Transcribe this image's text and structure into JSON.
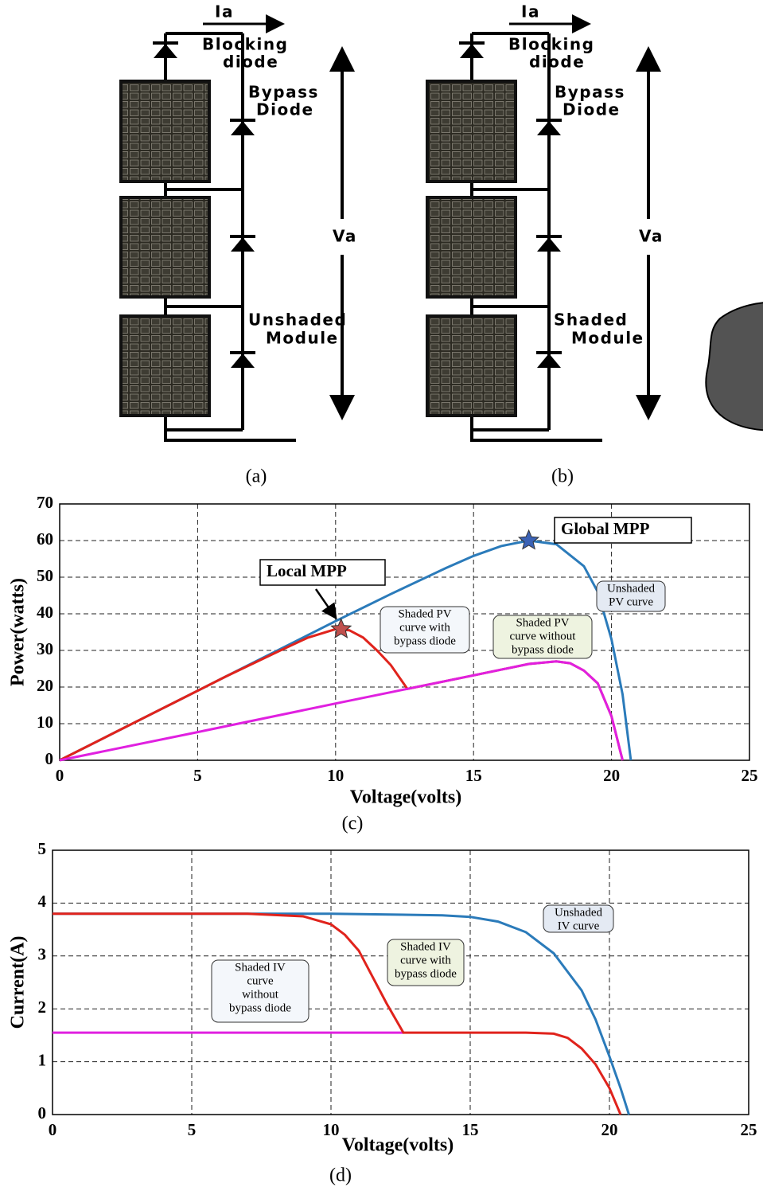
{
  "diagram": {
    "panels": [
      {
        "current": "Ia",
        "blocking": [
          "Blocking",
          "diode"
        ],
        "bypass": [
          "Bypass",
          "Diode"
        ],
        "voltage": "Va",
        "module": [
          "Unshaded",
          "Module"
        ],
        "caption": "(a)"
      },
      {
        "current": "Ia",
        "blocking": [
          "Blocking",
          "diode"
        ],
        "bypass": [
          "Bypass",
          "Diode"
        ],
        "voltage": "Va",
        "module": [
          "Shaded",
          "Module"
        ],
        "caption": "(b)"
      }
    ]
  },
  "chart_data": [
    {
      "type": "line",
      "caption": "(c)",
      "x_label": "Voltage(volts)",
      "y_label": "Power(watts)",
      "xlim": [
        0,
        25
      ],
      "ylim": [
        0,
        70
      ],
      "xticks": [
        0,
        5,
        10,
        15,
        20,
        25
      ],
      "yticks": [
        0,
        10,
        20,
        30,
        40,
        50,
        60,
        70
      ],
      "grid": true,
      "series": [
        {
          "label": [
            "Unshaded",
            "PV curve"
          ],
          "color": "#2b7bba",
          "x": [
            0,
            2,
            4,
            6,
            8,
            10,
            12,
            14,
            15,
            16,
            17,
            18,
            19,
            19.5,
            20,
            20.4,
            20.7
          ],
          "values": [
            0,
            7.6,
            15.2,
            22.8,
            30.4,
            38,
            45.4,
            52.5,
            55.8,
            58.5,
            60,
            59,
            53,
            46,
            33,
            18,
            0
          ]
        },
        {
          "label": [
            "Shaded PV",
            "curve with",
            "bypass diode"
          ],
          "color": "#e0231c",
          "x": [
            0,
            2,
            4,
            6,
            8,
            9,
            10,
            10.5,
            11,
            11.5,
            12,
            12.6,
            15,
            17,
            18,
            18.5,
            19,
            19.5,
            20,
            20.4
          ],
          "values": [
            0,
            7.6,
            15.2,
            22.8,
            30,
            33.5,
            35.8,
            35.5,
            33.5,
            30,
            26,
            19.5,
            23.2,
            26.3,
            27,
            26.5,
            24.5,
            21,
            12,
            0
          ]
        },
        {
          "label": [
            "Shaded PV",
            "curve without",
            "bypass diode"
          ],
          "color": "#e020e0",
          "x": [
            0,
            5,
            10,
            15,
            17,
            18,
            18.5,
            19,
            19.5,
            20,
            20.4
          ],
          "values": [
            0,
            7.7,
            15.5,
            23.2,
            26.3,
            27,
            26.5,
            24.5,
            21,
            12,
            0
          ]
        }
      ],
      "markers": [
        {
          "label": "Global MPP",
          "x": 17,
          "y": 60,
          "color": "#3b62b5"
        },
        {
          "label": "Local MPP",
          "x": 10.2,
          "y": 35.8,
          "color": "#c0504d"
        }
      ]
    },
    {
      "type": "line",
      "caption": "(d)",
      "x_label": "Voltage(volts)",
      "y_label": "Current(A)",
      "xlim": [
        0,
        25
      ],
      "ylim": [
        0,
        5
      ],
      "xticks": [
        0,
        5,
        10,
        15,
        20,
        25
      ],
      "yticks": [
        0,
        1,
        2,
        3,
        4,
        5
      ],
      "grid": true,
      "series": [
        {
          "label": [
            "Shaded IV",
            "curve",
            "without",
            "bypass diode"
          ],
          "color": "#e020e0",
          "x": [
            0,
            12.6
          ],
          "values": [
            1.55,
            1.55
          ]
        },
        {
          "label": [
            "Unshaded",
            "IV curve"
          ],
          "color": "#2b7bba",
          "x": [
            0,
            10,
            14,
            15,
            16,
            17,
            18,
            19,
            19.5,
            20,
            20.4,
            20.7
          ],
          "values": [
            3.8,
            3.8,
            3.77,
            3.74,
            3.65,
            3.45,
            3.05,
            2.35,
            1.8,
            1.1,
            0.5,
            0
          ]
        },
        {
          "label": [
            "Shaded IV",
            "curve with",
            "bypass diode"
          ],
          "color": "#e0231c",
          "x": [
            0,
            7,
            9,
            10,
            10.5,
            11,
            11.5,
            12,
            12.6,
            17,
            18,
            18.5,
            19,
            19.5,
            20,
            20.4
          ],
          "values": [
            3.8,
            3.8,
            3.75,
            3.6,
            3.4,
            3.1,
            2.6,
            2.1,
            1.55,
            1.55,
            1.53,
            1.45,
            1.25,
            0.95,
            0.5,
            0
          ]
        }
      ]
    }
  ]
}
